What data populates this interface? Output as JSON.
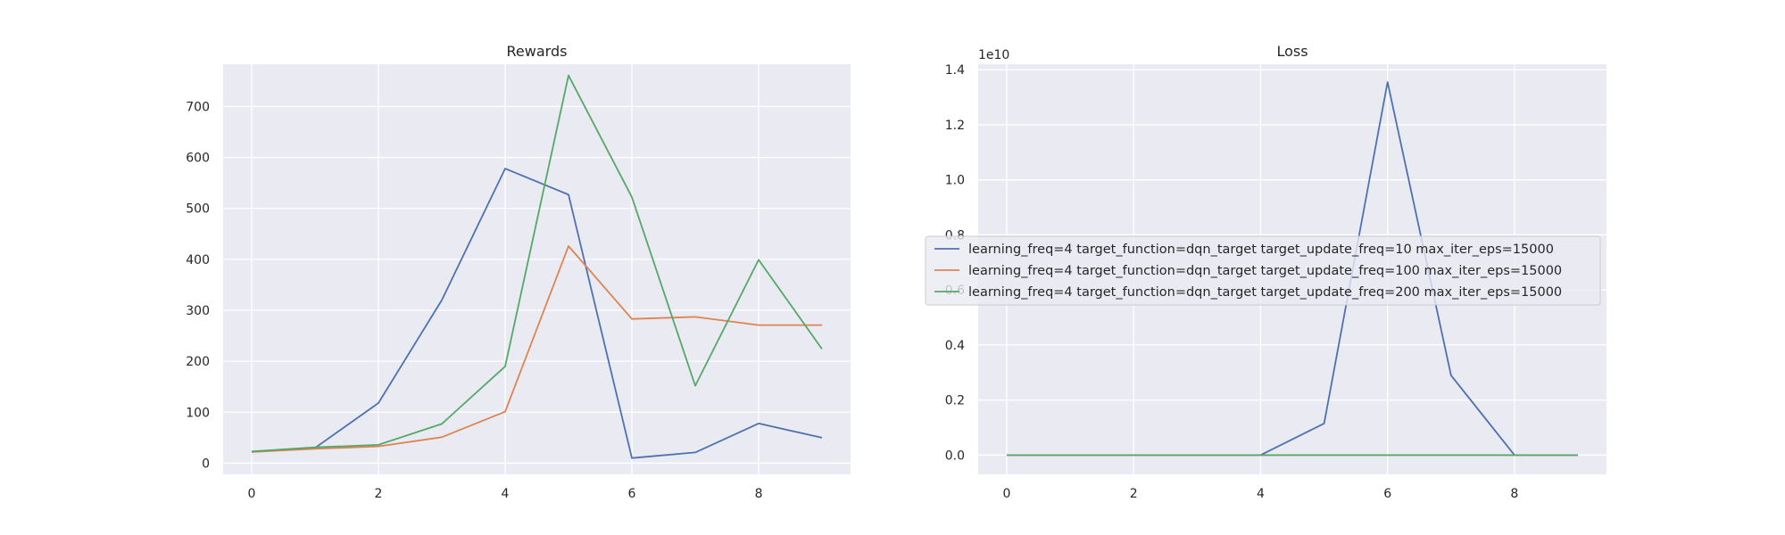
{
  "series_names": [
    "learning_freq=4 target_function=dqn_target target_update_freq=10 max_iter_eps=15000",
    "learning_freq=4 target_function=dqn_target target_update_freq=100 max_iter_eps=15000",
    "learning_freq=4 target_function=dqn_target target_update_freq=200 max_iter_eps=15000"
  ],
  "colors": [
    "#4c72b0",
    "#dd8452",
    "#55a868"
  ],
  "chart_data": [
    {
      "type": "line",
      "title": "Rewards",
      "xlabel": "",
      "ylabel": "",
      "x": [
        0,
        1,
        2,
        3,
        4,
        5,
        6,
        7,
        8,
        9
      ],
      "xlim": [
        -0.45,
        9.45
      ],
      "ylim": [
        -22,
        783
      ],
      "xticks": [
        0,
        2,
        4,
        6,
        8
      ],
      "yticks": [
        0,
        100,
        200,
        300,
        400,
        500,
        600,
        700
      ],
      "grid": true,
      "series": [
        {
          "name": "learning_freq=4 target_function=dqn_target target_update_freq=10 max_iter_eps=15000",
          "values": [
            22,
            30,
            118,
            320,
            578,
            527,
            10,
            21,
            78,
            50
          ]
        },
        {
          "name": "learning_freq=4 target_function=dqn_target target_update_freq=100 max_iter_eps=15000",
          "values": [
            22,
            28,
            33,
            51,
            101,
            426,
            283,
            287,
            271,
            271
          ]
        },
        {
          "name": "learning_freq=4 target_function=dqn_target target_update_freq=200 max_iter_eps=15000",
          "values": [
            23,
            31,
            36,
            77,
            190,
            761,
            522,
            152,
            399,
            224
          ]
        }
      ]
    },
    {
      "type": "line",
      "title": "Loss",
      "xlabel": "",
      "ylabel": "",
      "y_offset_label": "1e10",
      "x": [
        0,
        1,
        2,
        3,
        4,
        5,
        6,
        7,
        8,
        9
      ],
      "xlim": [
        -0.45,
        9.45
      ],
      "ylim": [
        -0.07,
        1.42
      ],
      "xticks": [
        0,
        2,
        4,
        6,
        8
      ],
      "yticks": [
        0.0,
        0.2,
        0.4,
        0.6,
        0.8,
        1.0,
        1.2,
        1.4
      ],
      "ytick_labels": [
        "0.0",
        "0.2",
        "0.4",
        "0.6",
        "0.8",
        "1.0",
        "1.2",
        "1.4"
      ],
      "grid": true,
      "legend": "center",
      "series": [
        {
          "name": "learning_freq=4 target_function=dqn_target target_update_freq=10 max_iter_eps=15000",
          "values": [
            0,
            0,
            0,
            0,
            0,
            0.115,
            1.355,
            0.29,
            0.0,
            0.0
          ]
        },
        {
          "name": "learning_freq=4 target_function=dqn_target target_update_freq=100 max_iter_eps=15000",
          "values": [
            0,
            0,
            0,
            0,
            0,
            0,
            0,
            0,
            0,
            0
          ]
        },
        {
          "name": "learning_freq=4 target_function=dqn_target target_update_freq=200 max_iter_eps=15000",
          "values": [
            0,
            0,
            0,
            0,
            0,
            0,
            0,
            0,
            0,
            0
          ]
        }
      ]
    }
  ]
}
